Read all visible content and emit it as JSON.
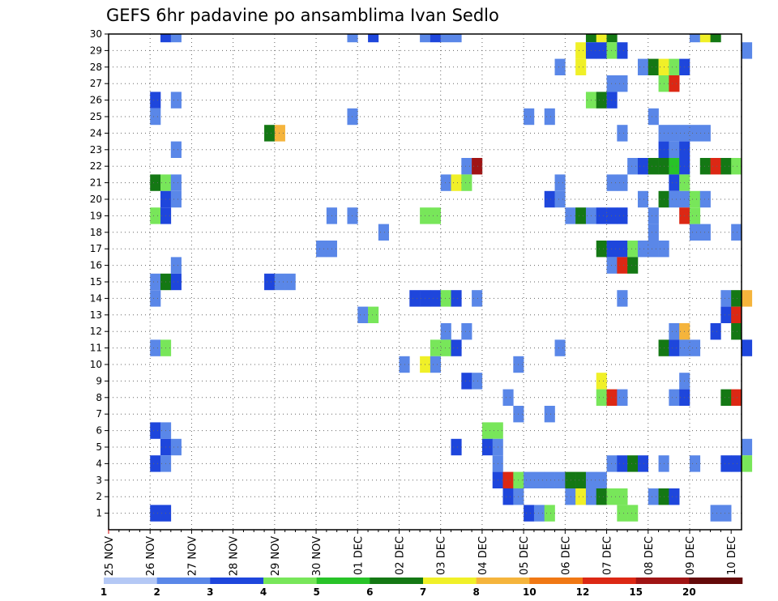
{
  "chart_data": {
    "type": "heatmap",
    "title": "GEFS 6hr padavine po ansamblima Ivan Sedlo",
    "xlabel": "",
    "ylabel": "",
    "y_ticks": [
      "1",
      "2",
      "3",
      "4",
      "5",
      "6",
      "7",
      "8",
      "9",
      "10",
      "11",
      "12",
      "13",
      "14",
      "15",
      "16",
      "17",
      "18",
      "19",
      "20",
      "21",
      "22",
      "23",
      "24",
      "25",
      "26",
      "27",
      "28",
      "29",
      "30"
    ],
    "x_ticks": [
      "25 NOV",
      "26 NOV",
      "27 NOV",
      "28 NOV",
      "29 NOV",
      "30 NOV",
      "01 DEC",
      "02 DEC",
      "03 DEC",
      "04 DEC",
      "05 DEC",
      "06 DEC",
      "07 DEC",
      "08 DEC",
      "09 DEC",
      "10 DEC"
    ],
    "x_unit": "6h steps from 25 NOV 00Z",
    "ylim": [
      0,
      30
    ],
    "grid": true,
    "legend": {
      "placement": "bottom",
      "levels": [
        "1",
        "2",
        "3",
        "4",
        "5",
        "6",
        "7",
        "8",
        "10",
        "12",
        "15",
        "20"
      ],
      "colors": [
        "#b4c8f5",
        "#5a87e8",
        "#1e46dc",
        "#78e65a",
        "#28c328",
        "#147814",
        "#f0f028",
        "#f5b43c",
        "#f07814",
        "#dc2814",
        "#a01414",
        "#640a0a"
      ]
    },
    "cells": [
      [
        5,
        30,
        2
      ],
      [
        6,
        30,
        1
      ],
      [
        23,
        30,
        1
      ],
      [
        25,
        30,
        2
      ],
      [
        30,
        30,
        1
      ],
      [
        31,
        30,
        2
      ],
      [
        32,
        30,
        1
      ],
      [
        33,
        30,
        1
      ],
      [
        46,
        30,
        5
      ],
      [
        47,
        30,
        6
      ],
      [
        48,
        30,
        5
      ],
      [
        56,
        30,
        1
      ],
      [
        57,
        30,
        6
      ],
      [
        58,
        30,
        5
      ],
      [
        45,
        29,
        6
      ],
      [
        46,
        29,
        2
      ],
      [
        47,
        29,
        2
      ],
      [
        48,
        29,
        3
      ],
      [
        49,
        29,
        2
      ],
      [
        61,
        29,
        1
      ],
      [
        43,
        28,
        1
      ],
      [
        45,
        28,
        6
      ],
      [
        51,
        28,
        1
      ],
      [
        52,
        28,
        5
      ],
      [
        53,
        28,
        6
      ],
      [
        54,
        28,
        3
      ],
      [
        55,
        28,
        2
      ],
      [
        48,
        27,
        1
      ],
      [
        49,
        27,
        1
      ],
      [
        53,
        27,
        3
      ],
      [
        54,
        27,
        9
      ],
      [
        4,
        26,
        2
      ],
      [
        6,
        26,
        1
      ],
      [
        46,
        26,
        3
      ],
      [
        47,
        26,
        5
      ],
      [
        48,
        26,
        2
      ],
      [
        4,
        25,
        1
      ],
      [
        23,
        25,
        1
      ],
      [
        40,
        25,
        1
      ],
      [
        42,
        25,
        1
      ],
      [
        52,
        25,
        1
      ],
      [
        15,
        24,
        5
      ],
      [
        16,
        24,
        7
      ],
      [
        49,
        24,
        1
      ],
      [
        53,
        24,
        1
      ],
      [
        54,
        24,
        1
      ],
      [
        55,
        24,
        1
      ],
      [
        56,
        24,
        1
      ],
      [
        57,
        24,
        1
      ],
      [
        6,
        23,
        1
      ],
      [
        53,
        23,
        2
      ],
      [
        54,
        23,
        1
      ],
      [
        55,
        23,
        2
      ],
      [
        34,
        22,
        1
      ],
      [
        35,
        22,
        10
      ],
      [
        50,
        22,
        1
      ],
      [
        51,
        22,
        2
      ],
      [
        52,
        22,
        5
      ],
      [
        53,
        22,
        5
      ],
      [
        54,
        22,
        4
      ],
      [
        55,
        22,
        2
      ],
      [
        57,
        22,
        5
      ],
      [
        58,
        22,
        9
      ],
      [
        59,
        22,
        5
      ],
      [
        60,
        22,
        3
      ],
      [
        4,
        21,
        5
      ],
      [
        5,
        21,
        3
      ],
      [
        6,
        21,
        1
      ],
      [
        32,
        21,
        1
      ],
      [
        33,
        21,
        6
      ],
      [
        34,
        21,
        3
      ],
      [
        43,
        21,
        1
      ],
      [
        48,
        21,
        1
      ],
      [
        49,
        21,
        1
      ],
      [
        54,
        21,
        2
      ],
      [
        55,
        21,
        3
      ],
      [
        5,
        20,
        2
      ],
      [
        6,
        20,
        1
      ],
      [
        42,
        20,
        2
      ],
      [
        43,
        20,
        1
      ],
      [
        51,
        20,
        1
      ],
      [
        53,
        20,
        5
      ],
      [
        54,
        20,
        1
      ],
      [
        55,
        20,
        1
      ],
      [
        56,
        20,
        3
      ],
      [
        57,
        20,
        1
      ],
      [
        4,
        19,
        3
      ],
      [
        5,
        19,
        2
      ],
      [
        21,
        19,
        1
      ],
      [
        23,
        19,
        1
      ],
      [
        30,
        19,
        3
      ],
      [
        31,
        19,
        3
      ],
      [
        44,
        19,
        1
      ],
      [
        45,
        19,
        5
      ],
      [
        46,
        19,
        1
      ],
      [
        47,
        19,
        2
      ],
      [
        48,
        19,
        2
      ],
      [
        49,
        19,
        2
      ],
      [
        52,
        19,
        1
      ],
      [
        55,
        19,
        9
      ],
      [
        56,
        19,
        3
      ],
      [
        26,
        18,
        1
      ],
      [
        52,
        18,
        1
      ],
      [
        56,
        18,
        1
      ],
      [
        57,
        18,
        1
      ],
      [
        60,
        18,
        1
      ],
      [
        20,
        17,
        1
      ],
      [
        21,
        17,
        1
      ],
      [
        47,
        17,
        5
      ],
      [
        48,
        17,
        2
      ],
      [
        49,
        17,
        2
      ],
      [
        50,
        17,
        3
      ],
      [
        51,
        17,
        1
      ],
      [
        52,
        17,
        1
      ],
      [
        53,
        17,
        1
      ],
      [
        6,
        16,
        1
      ],
      [
        48,
        16,
        1
      ],
      [
        49,
        16,
        9
      ],
      [
        50,
        16,
        5
      ],
      [
        4,
        15,
        1
      ],
      [
        5,
        15,
        5
      ],
      [
        6,
        15,
        2
      ],
      [
        15,
        15,
        2
      ],
      [
        16,
        15,
        1
      ],
      [
        17,
        15,
        1
      ],
      [
        4,
        14,
        1
      ],
      [
        29,
        14,
        2
      ],
      [
        30,
        14,
        2
      ],
      [
        31,
        14,
        2
      ],
      [
        32,
        14,
        3
      ],
      [
        33,
        14,
        2
      ],
      [
        35,
        14,
        1
      ],
      [
        49,
        14,
        1
      ],
      [
        59,
        14,
        1
      ],
      [
        60,
        14,
        5
      ],
      [
        61,
        14,
        7
      ],
      [
        24,
        13,
        1
      ],
      [
        25,
        13,
        3
      ],
      [
        59,
        13,
        2
      ],
      [
        60,
        13,
        9
      ],
      [
        32,
        12,
        1
      ],
      [
        34,
        12,
        1
      ],
      [
        54,
        12,
        1
      ],
      [
        55,
        12,
        7
      ],
      [
        58,
        12,
        2
      ],
      [
        60,
        12,
        5
      ],
      [
        4,
        11,
        1
      ],
      [
        5,
        11,
        3
      ],
      [
        31,
        11,
        3
      ],
      [
        32,
        11,
        3
      ],
      [
        33,
        11,
        2
      ],
      [
        43,
        11,
        1
      ],
      [
        53,
        11,
        5
      ],
      [
        54,
        11,
        2
      ],
      [
        55,
        11,
        1
      ],
      [
        56,
        11,
        1
      ],
      [
        61,
        11,
        2
      ],
      [
        28,
        10,
        1
      ],
      [
        30,
        10,
        6
      ],
      [
        31,
        10,
        1
      ],
      [
        39,
        10,
        1
      ],
      [
        34,
        9,
        2
      ],
      [
        35,
        9,
        1
      ],
      [
        47,
        9,
        6
      ],
      [
        55,
        9,
        1
      ],
      [
        38,
        8,
        1
      ],
      [
        47,
        8,
        3
      ],
      [
        48,
        8,
        9
      ],
      [
        49,
        8,
        1
      ],
      [
        54,
        8,
        1
      ],
      [
        55,
        8,
        2
      ],
      [
        59,
        8,
        5
      ],
      [
        60,
        8,
        9
      ],
      [
        39,
        7,
        1
      ],
      [
        42,
        7,
        1
      ],
      [
        4,
        6,
        2
      ],
      [
        5,
        6,
        1
      ],
      [
        36,
        6,
        3
      ],
      [
        37,
        6,
        3
      ],
      [
        5,
        5,
        2
      ],
      [
        6,
        5,
        1
      ],
      [
        33,
        5,
        2
      ],
      [
        36,
        5,
        2
      ],
      [
        37,
        5,
        1
      ],
      [
        61,
        5,
        1
      ],
      [
        4,
        4,
        2
      ],
      [
        5,
        4,
        1
      ],
      [
        37,
        4,
        1
      ],
      [
        48,
        4,
        1
      ],
      [
        49,
        4,
        2
      ],
      [
        50,
        4,
        5
      ],
      [
        51,
        4,
        2
      ],
      [
        53,
        4,
        1
      ],
      [
        56,
        4,
        1
      ],
      [
        59,
        4,
        2
      ],
      [
        60,
        4,
        2
      ],
      [
        61,
        4,
        3
      ],
      [
        37,
        3,
        2
      ],
      [
        38,
        3,
        9
      ],
      [
        39,
        3,
        3
      ],
      [
        40,
        3,
        1
      ],
      [
        41,
        3,
        1
      ],
      [
        42,
        3,
        1
      ],
      [
        43,
        3,
        1
      ],
      [
        44,
        3,
        5
      ],
      [
        45,
        3,
        5
      ],
      [
        46,
        3,
        1
      ],
      [
        47,
        3,
        1
      ],
      [
        38,
        2,
        2
      ],
      [
        39,
        2,
        1
      ],
      [
        44,
        2,
        1
      ],
      [
        45,
        2,
        6
      ],
      [
        46,
        2,
        1
      ],
      [
        47,
        2,
        5
      ],
      [
        48,
        2,
        3
      ],
      [
        49,
        2,
        3
      ],
      [
        52,
        2,
        1
      ],
      [
        53,
        2,
        5
      ],
      [
        54,
        2,
        2
      ],
      [
        4,
        1,
        2
      ],
      [
        5,
        1,
        2
      ],
      [
        40,
        1,
        2
      ],
      [
        41,
        1,
        1
      ],
      [
        42,
        1,
        3
      ],
      [
        49,
        1,
        3
      ],
      [
        50,
        1,
        3
      ],
      [
        58,
        1,
        1
      ],
      [
        59,
        1,
        1
      ]
    ]
  }
}
